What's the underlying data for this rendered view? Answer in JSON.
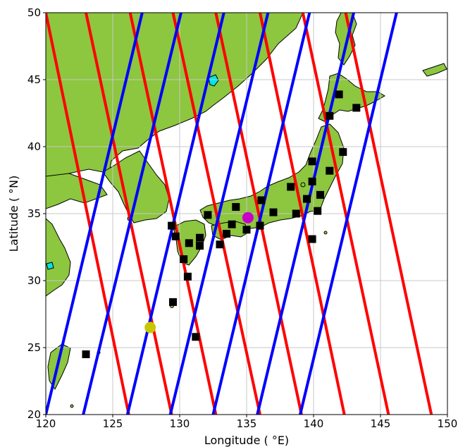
{
  "chart_data": {
    "type": "map",
    "xlabel": "Longitude ($^\\circ$E)",
    "ylabel": "Latitude ($^\\circ$N)",
    "xlim": [
      120,
      150
    ],
    "ylim": [
      20,
      50
    ],
    "xticks": [
      120,
      125,
      130,
      135,
      140,
      145,
      150
    ],
    "yticks": [
      20,
      25,
      30,
      35,
      40,
      45,
      50
    ],
    "xtick_labels": [
      "120",
      "125",
      "130",
      "135",
      "140",
      "145",
      "150"
    ],
    "ytick_labels": [
      "20",
      "25",
      "30",
      "35",
      "40",
      "45",
      "50"
    ],
    "xlabel_text": "Longitude ( °E)",
    "ylabel_text": "Latitude ( °N)",
    "grid": true,
    "colors": {
      "land": "#8dc63f",
      "coast": "#000000",
      "lake": "#00e5e5",
      "ascending_track": "#0000ff",
      "descending_track": "#ff0000",
      "station": "#000000",
      "magenta_marker": "#c800c8",
      "yellow_marker": "#c8c800",
      "grid": "#c8c8c8"
    },
    "ascending_tracks": [
      {
        "lon20": 120.0,
        "lon50": 127.2
      },
      {
        "lon20": 122.8,
        "lon50": 130.1
      },
      {
        "lon20": 126.1,
        "lon50": 133.3
      },
      {
        "lon20": 129.3,
        "lon50": 136.6
      },
      {
        "lon20": 132.5,
        "lon50": 139.7
      },
      {
        "lon20": 135.8,
        "lon50": 143.0
      },
      {
        "lon20": 139.0,
        "lon50": 146.2
      }
    ],
    "descending_tracks": [
      {
        "lon50": 120.0,
        "lon20": 126.2
      },
      {
        "lon50": 123.0,
        "lon20": 129.4
      },
      {
        "lon50": 126.3,
        "lon20": 132.7
      },
      {
        "lon50": 129.5,
        "lon20": 136.0
      },
      {
        "lon50": 132.7,
        "lon20": 139.1
      },
      {
        "lon50": 136.0,
        "lon20": 142.3
      },
      {
        "lon50": 139.2,
        "lon20": 145.6
      },
      {
        "lon50": 142.4,
        "lon20": 148.8
      }
    ],
    "stations": [
      [
        141.9,
        43.9
      ],
      [
        143.2,
        42.9
      ],
      [
        141.2,
        42.3
      ],
      [
        142.2,
        39.6
      ],
      [
        139.9,
        38.9
      ],
      [
        141.2,
        38.2
      ],
      [
        139.9,
        37.4
      ],
      [
        138.3,
        37.0
      ],
      [
        140.5,
        36.4
      ],
      [
        136.1,
        36.0
      ],
      [
        139.5,
        36.1
      ],
      [
        137.0,
        35.1
      ],
      [
        138.7,
        35.0
      ],
      [
        140.3,
        35.2
      ],
      [
        132.1,
        34.9
      ],
      [
        134.2,
        35.5
      ],
      [
        135.1,
        34.7
      ],
      [
        133.9,
        34.2
      ],
      [
        135.0,
        33.8
      ],
      [
        136.0,
        34.1
      ],
      [
        133.5,
        33.5
      ],
      [
        131.5,
        33.2
      ],
      [
        129.4,
        34.1
      ],
      [
        129.7,
        33.3
      ],
      [
        130.7,
        32.8
      ],
      [
        131.5,
        32.6
      ],
      [
        133.0,
        32.7
      ],
      [
        139.9,
        33.1
      ],
      [
        130.3,
        31.6
      ],
      [
        130.6,
        30.3
      ],
      [
        129.5,
        28.4
      ],
      [
        131.2,
        25.8
      ],
      [
        123.0,
        24.5
      ]
    ],
    "markers": [
      {
        "lon": 135.1,
        "lat": 34.7,
        "color": "magenta"
      },
      {
        "lon": 127.8,
        "lat": 26.5,
        "color": "yellow"
      }
    ]
  }
}
